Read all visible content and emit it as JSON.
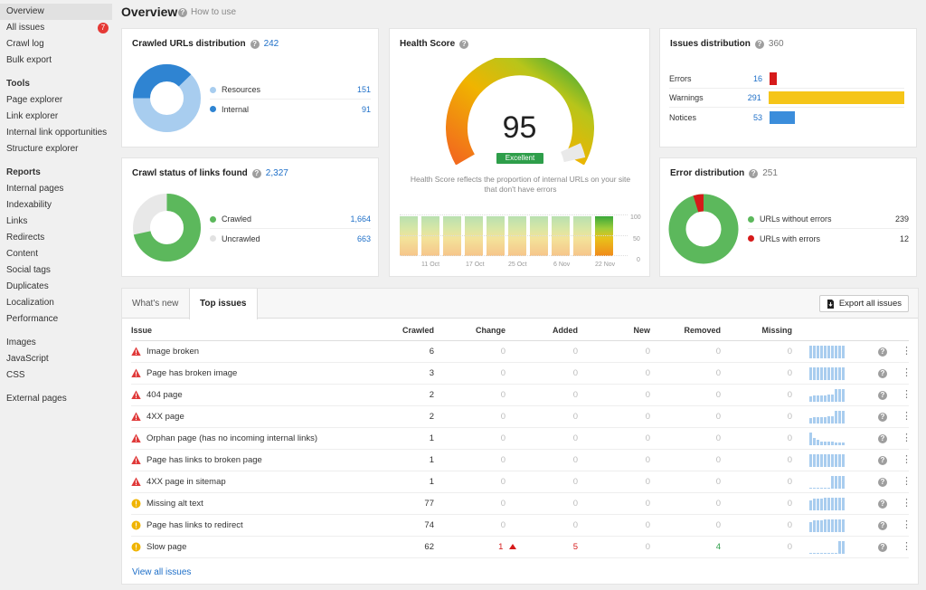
{
  "sidebar": {
    "top": [
      {
        "label": "Overview",
        "active": true
      },
      {
        "label": "All issues",
        "badge": "7"
      },
      {
        "label": "Crawl log"
      },
      {
        "label": "Bulk export"
      }
    ],
    "tools_heading": "Tools",
    "tools": [
      "Page explorer",
      "Link explorer",
      "Internal link opportunities",
      "Structure explorer"
    ],
    "reports_heading": "Reports",
    "reports": [
      "Internal pages",
      "Indexability",
      "Links",
      "Redirects",
      "Content",
      "Social tags",
      "Duplicates",
      "Localization",
      "Performance"
    ],
    "assets": [
      "Images",
      "JavaScript",
      "CSS"
    ],
    "external": [
      "External pages"
    ]
  },
  "header": {
    "title": "Overview",
    "how_to_use": "How to use"
  },
  "crawled_urls": {
    "title": "Crawled URLs distribution",
    "count": "242",
    "items": [
      {
        "label": "Resources",
        "value": "151",
        "color": "#a8cdef"
      },
      {
        "label": "Internal",
        "value": "91",
        "color": "#2f84d2"
      }
    ]
  },
  "crawl_status": {
    "title": "Crawl status of links found",
    "count": "2,327",
    "items": [
      {
        "label": "Crawled",
        "value": "1,664",
        "color": "#5cb85c"
      },
      {
        "label": "Uncrawled",
        "value": "663",
        "color": "#e8e8e8"
      }
    ]
  },
  "health_score": {
    "title": "Health Score",
    "score": "95",
    "badge": "Excellent",
    "description": "Health Score reflects the proportion of internal URLs on your site that don't have errors",
    "x_labels": [
      "11 Oct",
      "17 Oct",
      "25 Oct",
      "6 Nov",
      "22 Nov"
    ],
    "y_labels": [
      "100",
      "50",
      "0"
    ]
  },
  "issues_distribution": {
    "title": "Issues distribution",
    "count": "360",
    "items": [
      {
        "label": "Errors",
        "value": "16",
        "color": "#d61a1a"
      },
      {
        "label": "Warnings",
        "value": "291",
        "color": "#f5c518"
      },
      {
        "label": "Notices",
        "value": "53",
        "color": "#3b8ddb"
      }
    ]
  },
  "error_distribution": {
    "title": "Error distribution",
    "count": "251",
    "items": [
      {
        "label": "URLs without errors",
        "value": "239",
        "color": "#5cb85c"
      },
      {
        "label": "URLs with errors",
        "value": "12",
        "color": "#d61a1a"
      }
    ]
  },
  "table": {
    "tabs": [
      "What's new",
      "Top issues"
    ],
    "active_tab": 1,
    "export_label": "Export all issues",
    "columns": [
      "Issue",
      "Crawled",
      "Change",
      "Added",
      "New",
      "Removed",
      "Missing"
    ],
    "rows": [
      {
        "type": "error",
        "issue": "Image broken",
        "crawled": "6",
        "change": "0",
        "added": "0",
        "new": "0",
        "removed": "0",
        "missing": "0"
      },
      {
        "type": "error",
        "issue": "Page has broken image",
        "crawled": "3",
        "change": "0",
        "added": "0",
        "new": "0",
        "removed": "0",
        "missing": "0"
      },
      {
        "type": "error",
        "issue": "404 page",
        "crawled": "2",
        "change": "0",
        "added": "0",
        "new": "0",
        "removed": "0",
        "missing": "0"
      },
      {
        "type": "error",
        "issue": "4XX page",
        "crawled": "2",
        "change": "0",
        "added": "0",
        "new": "0",
        "removed": "0",
        "missing": "0"
      },
      {
        "type": "error",
        "issue": "Orphan page (has no incoming internal links)",
        "crawled": "1",
        "change": "0",
        "added": "0",
        "new": "0",
        "removed": "0",
        "missing": "0"
      },
      {
        "type": "error",
        "issue": "Page has links to broken page",
        "crawled": "1",
        "change": "0",
        "added": "0",
        "new": "0",
        "removed": "0",
        "missing": "0"
      },
      {
        "type": "error",
        "issue": "4XX page in sitemap",
        "crawled": "1",
        "change": "0",
        "added": "0",
        "new": "0",
        "removed": "0",
        "missing": "0"
      },
      {
        "type": "warning",
        "issue": "Missing alt text",
        "crawled": "77",
        "change": "0",
        "added": "0",
        "new": "0",
        "removed": "0",
        "missing": "0"
      },
      {
        "type": "warning",
        "issue": "Page has links to redirect",
        "crawled": "74",
        "change": "0",
        "added": "0",
        "new": "0",
        "removed": "0",
        "missing": "0"
      },
      {
        "type": "warning",
        "issue": "Slow page",
        "crawled": "62",
        "change": "1",
        "change_up": true,
        "added": "5",
        "new": "0",
        "removed": "4",
        "missing": "0"
      }
    ],
    "view_all": "View all issues"
  }
}
